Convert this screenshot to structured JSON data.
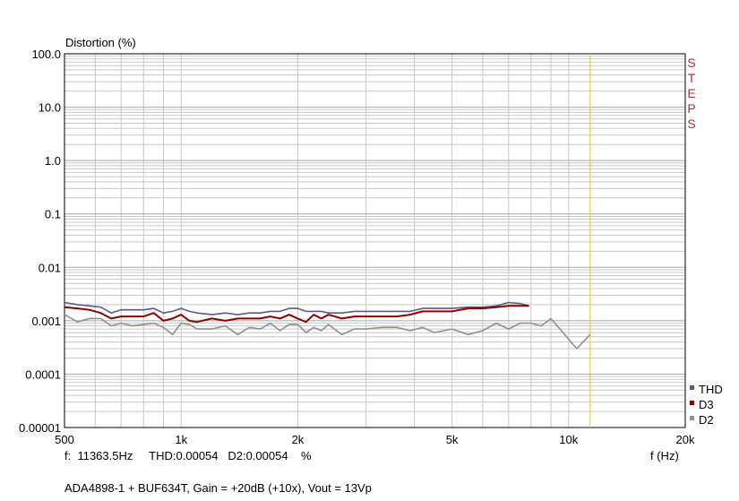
{
  "chart_data": {
    "type": "line",
    "ylabel": "Distortion (%)",
    "xlabel": "f (Hz)",
    "x_scale": "log",
    "y_scale": "log",
    "xlim": [
      500,
      20000
    ],
    "ylim": [
      1e-05,
      100
    ],
    "x_ticks": [
      {
        "value": 500,
        "label": "500"
      },
      {
        "value": 1000,
        "label": "1k"
      },
      {
        "value": 2000,
        "label": "2k"
      },
      {
        "value": 5000,
        "label": "5k"
      },
      {
        "value": 10000,
        "label": "10k"
      },
      {
        "value": 20000,
        "label": "20k"
      }
    ],
    "y_ticks": [
      {
        "value": 100,
        "label": "100.0"
      },
      {
        "value": 10,
        "label": "10.0"
      },
      {
        "value": 1,
        "label": "1.0"
      },
      {
        "value": 0.1,
        "label": "0.1"
      },
      {
        "value": 0.01,
        "label": "0.01"
      },
      {
        "value": 0.001,
        "label": "0.001"
      },
      {
        "value": 0.0001,
        "label": "0.0001"
      },
      {
        "value": 1e-05,
        "label": "0.00001"
      }
    ],
    "grid": true,
    "legend_position": "bottom-right",
    "cursor_x": 11363.5,
    "side_label": "STEPS",
    "series": [
      {
        "name": "THD",
        "color": "#5a5a86",
        "x": [
          500,
          540,
          580,
          620,
          660,
          700,
          750,
          800,
          850,
          900,
          950,
          1000,
          1050,
          1100,
          1200,
          1300,
          1400,
          1500,
          1600,
          1700,
          1800,
          1900,
          2000,
          2100,
          2200,
          2300,
          2400,
          2600,
          2800,
          3000,
          3300,
          3600,
          3900,
          4200,
          4500,
          5000,
          5500,
          6000,
          6500,
          7000,
          7500,
          7900
        ],
        "y": [
          0.0022,
          0.002,
          0.0019,
          0.0018,
          0.0014,
          0.0016,
          0.0016,
          0.0016,
          0.0017,
          0.0014,
          0.0015,
          0.0017,
          0.0015,
          0.0014,
          0.0013,
          0.0014,
          0.0013,
          0.0014,
          0.0014,
          0.0015,
          0.0015,
          0.0017,
          0.0017,
          0.0015,
          0.0015,
          0.0015,
          0.0014,
          0.0014,
          0.0015,
          0.0015,
          0.0015,
          0.0015,
          0.0015,
          0.0017,
          0.0017,
          0.0017,
          0.0018,
          0.0018,
          0.0019,
          0.0022,
          0.0021,
          0.0019
        ]
      },
      {
        "name": "D3",
        "color": "#8b0000",
        "x": [
          500,
          540,
          580,
          620,
          660,
          700,
          750,
          800,
          850,
          900,
          950,
          1000,
          1050,
          1100,
          1200,
          1300,
          1400,
          1500,
          1600,
          1700,
          1800,
          1900,
          2000,
          2100,
          2200,
          2300,
          2400,
          2600,
          2800,
          3000,
          3300,
          3600,
          3900,
          4200,
          4500,
          5000,
          5500,
          6000,
          6500,
          7000,
          7500,
          7900
        ],
        "y": [
          0.0018,
          0.0017,
          0.0016,
          0.0014,
          0.0011,
          0.0012,
          0.0012,
          0.0012,
          0.0014,
          0.001,
          0.0011,
          0.0013,
          0.001,
          0.00095,
          0.0011,
          0.001,
          0.0011,
          0.0011,
          0.0011,
          0.0012,
          0.0011,
          0.0013,
          0.0011,
          0.00095,
          0.0013,
          0.0011,
          0.0013,
          0.0011,
          0.0012,
          0.0012,
          0.0012,
          0.0012,
          0.0013,
          0.0015,
          0.0015,
          0.0015,
          0.0017,
          0.0017,
          0.0018,
          0.0019,
          0.0019,
          0.0019
        ]
      },
      {
        "name": "D2",
        "color": "#909090",
        "x": [
          500,
          540,
          580,
          620,
          660,
          700,
          750,
          800,
          850,
          900,
          950,
          1000,
          1050,
          1100,
          1200,
          1300,
          1400,
          1500,
          1600,
          1700,
          1800,
          1900,
          2000,
          2100,
          2200,
          2300,
          2400,
          2600,
          2800,
          3000,
          3300,
          3600,
          3900,
          4200,
          4500,
          5000,
          5500,
          6000,
          6500,
          7000,
          7500,
          8000,
          8500,
          9000,
          9500,
          10000,
          10500,
          11363
        ],
        "y": [
          0.0013,
          0.00095,
          0.0011,
          0.0011,
          0.0008,
          0.0009,
          0.0008,
          0.00085,
          0.0009,
          0.00075,
          0.00055,
          0.0009,
          0.00085,
          0.0007,
          0.0007,
          0.0008,
          0.00055,
          0.00075,
          0.0007,
          0.0009,
          0.00065,
          0.00085,
          0.00085,
          0.0006,
          0.00075,
          0.00065,
          0.00085,
          0.00055,
          0.0007,
          0.0007,
          0.00075,
          0.00075,
          0.00065,
          0.00075,
          0.0006,
          0.0007,
          0.00055,
          0.00065,
          0.0009,
          0.0007,
          0.0009,
          0.0009,
          0.0008,
          0.0011,
          0.0007,
          0.00045,
          0.0003,
          0.00055
        ]
      }
    ]
  },
  "footer": {
    "readout": "f:  11363.5Hz     THD:0.00054   D2:0.00054    %",
    "caption": "ADA4898-1 + BUF634T, Gain = +20dB (+10x), Vout = 13Vp"
  }
}
